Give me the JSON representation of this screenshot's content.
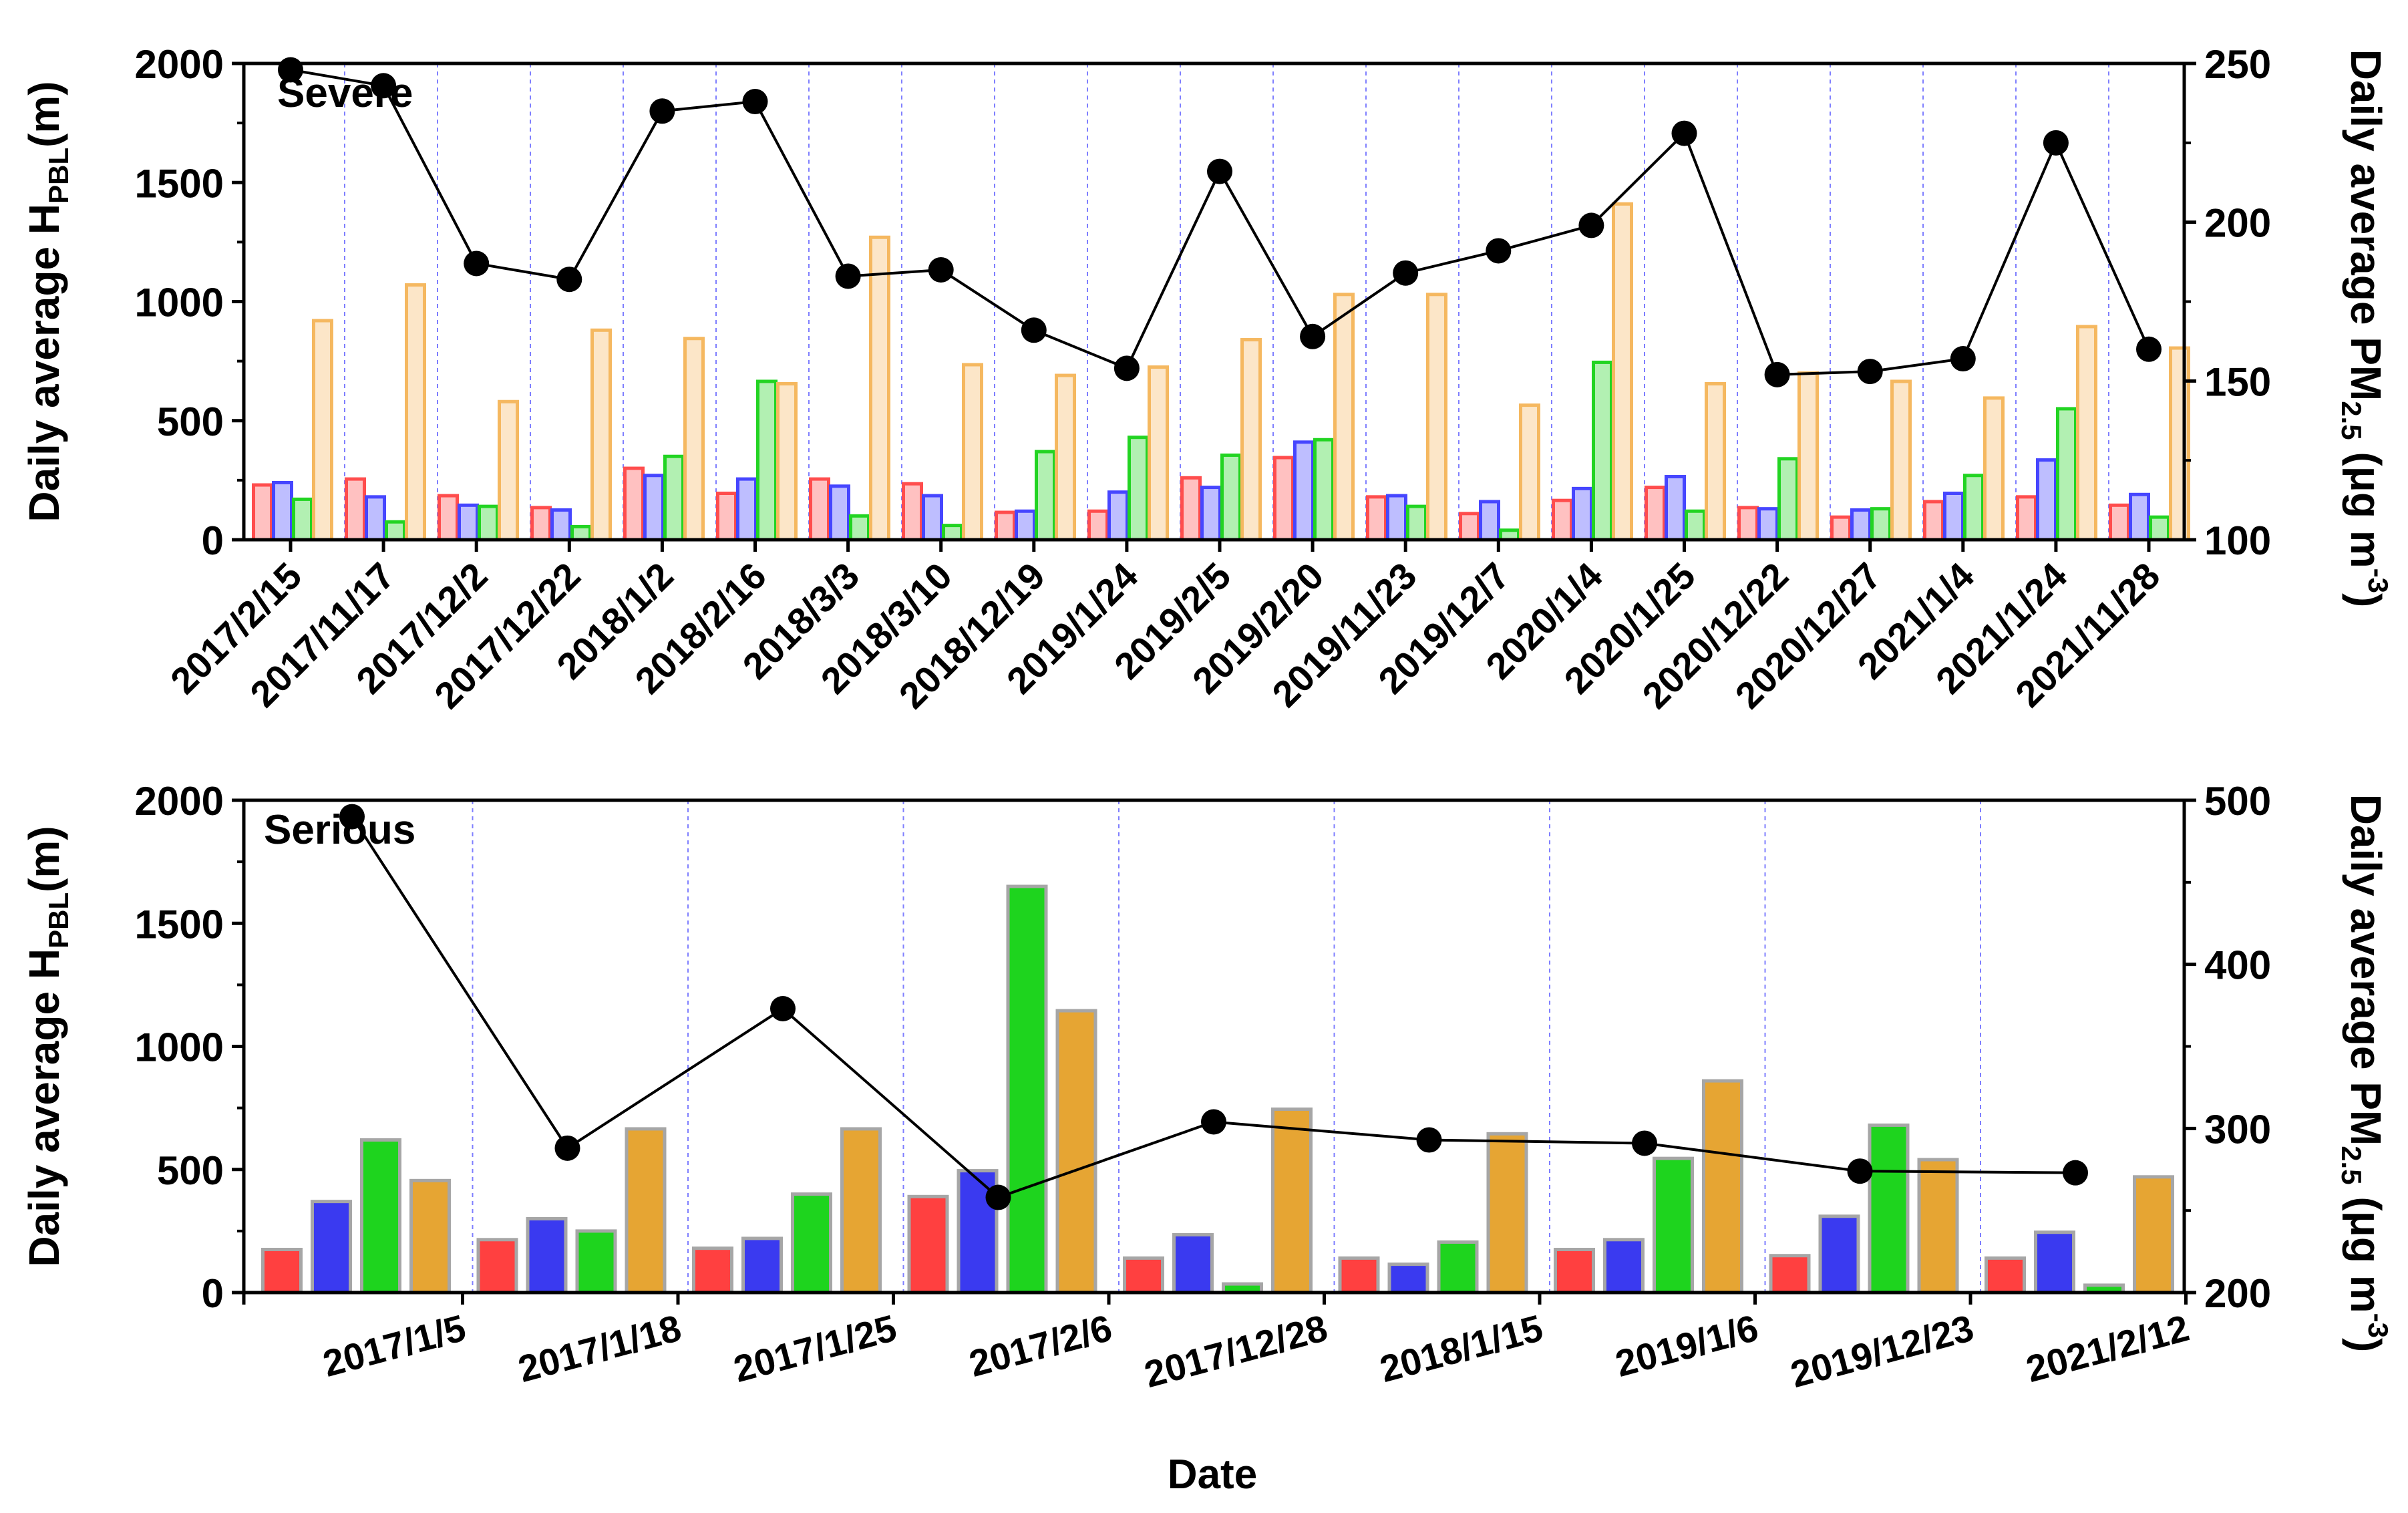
{
  "figure": {
    "xlabel": "Date"
  },
  "chart_data": [
    {
      "type": "bar",
      "title": "Severe",
      "ylabel_main": "Daily average H",
      "ylabel_sub": "PBL",
      "ylabel_unit": "(m)",
      "y2label_main": "Daily average PM",
      "y2label_sub": "2.5",
      "y2label_unit": " (μg m",
      "y2label_sup": "-3",
      "y2label_close": ")",
      "ylim": [
        0,
        2000
      ],
      "y2lim": [
        100,
        250
      ],
      "yticks": [
        0,
        500,
        1000,
        1500,
        2000
      ],
      "y2ticks": [
        100,
        150,
        200,
        250
      ],
      "tick_labels": [
        "0",
        "500",
        "1000",
        "1500",
        "2000"
      ],
      "y2tick_labels": [
        "100",
        "150",
        "200",
        "250"
      ],
      "categories": [
        "2017/2/15",
        "2017/11/17",
        "2017/12/2",
        "2017/12/22",
        "2018/1/2",
        "2018/2/16",
        "2018/3/3",
        "2018/3/10",
        "2018/12/19",
        "2019/1/24",
        "2019/2/5",
        "2019/2/20",
        "2019/11/23",
        "2019/12/7",
        "2020/1/4",
        "2020/1/25",
        "2020/12/22",
        "2020/12/27",
        "2021/1/4",
        "2021/1/24",
        "2021/11/28"
      ],
      "series": [
        {
          "name": "series-red",
          "color": "#ff4d4d",
          "values": [
            230,
            255,
            185,
            135,
            300,
            195,
            255,
            235,
            115,
            120,
            260,
            345,
            180,
            110,
            165,
            220,
            135,
            95,
            160,
            180,
            145
          ]
        },
        {
          "name": "series-blue",
          "color": "#4646ff",
          "values": [
            240,
            180,
            145,
            125,
            270,
            255,
            225,
            185,
            120,
            200,
            220,
            410,
            185,
            160,
            215,
            265,
            130,
            125,
            195,
            335,
            190
          ]
        },
        {
          "name": "series-green",
          "color": "#22d422",
          "values": [
            170,
            75,
            140,
            55,
            350,
            665,
            100,
            60,
            370,
            430,
            355,
            420,
            140,
            40,
            745,
            120,
            340,
            130,
            270,
            550,
            95
          ]
        },
        {
          "name": "series-orange",
          "color": "#f5b860",
          "values": [
            920,
            1070,
            580,
            880,
            845,
            655,
            1270,
            735,
            690,
            725,
            840,
            1030,
            1030,
            565,
            1410,
            655,
            700,
            665,
            595,
            895,
            805
          ]
        }
      ],
      "pm25": [
        248,
        243,
        187,
        182,
        235,
        238,
        183,
        185,
        166,
        154,
        216,
        164,
        184,
        191,
        199,
        228,
        152,
        153,
        157,
        225,
        160
      ]
    },
    {
      "type": "bar",
      "title": "Serious",
      "ylabel_main": "Daily average H",
      "ylabel_sub": "PBL",
      "ylabel_unit": "(m)",
      "y2label_main": "Daily average PM",
      "y2label_sub": "2.5",
      "y2label_unit": " (μg m",
      "y2label_sup": "-3",
      "y2label_close": ")",
      "ylim": [
        0,
        2000
      ],
      "y2lim": [
        200,
        500
      ],
      "yticks": [
        0,
        500,
        1000,
        1500,
        2000
      ],
      "y2ticks": [
        200,
        300,
        400,
        500
      ],
      "tick_labels": [
        "0",
        "500",
        "1000",
        "1500",
        "2000"
      ],
      "y2tick_labels": [
        "200",
        "300",
        "400",
        "500"
      ],
      "categories": [
        "2017/1/5",
        "2017/1/18",
        "2017/1/25",
        "2017/2/6",
        "2017/12/28",
        "2018/1/15",
        "2019/1/6",
        "2019/12/23",
        "2021/2/12"
      ],
      "series": [
        {
          "name": "series-red",
          "color": "#ff4040",
          "values": [
            175,
            215,
            180,
            390,
            140,
            140,
            175,
            150,
            140
          ]
        },
        {
          "name": "series-blue",
          "color": "#3a3af0",
          "values": [
            370,
            300,
            220,
            495,
            235,
            115,
            215,
            310,
            245
          ]
        },
        {
          "name": "series-green",
          "color": "#1ed41e",
          "values": [
            620,
            250,
            400,
            1650,
            35,
            205,
            545,
            680,
            30
          ]
        },
        {
          "name": "series-orange",
          "color": "#e6a533",
          "values": [
            455,
            665,
            665,
            1145,
            745,
            645,
            860,
            540,
            470
          ]
        }
      ],
      "pm25": [
        490,
        288,
        373,
        258,
        304,
        293,
        291,
        274,
        273
      ]
    }
  ]
}
